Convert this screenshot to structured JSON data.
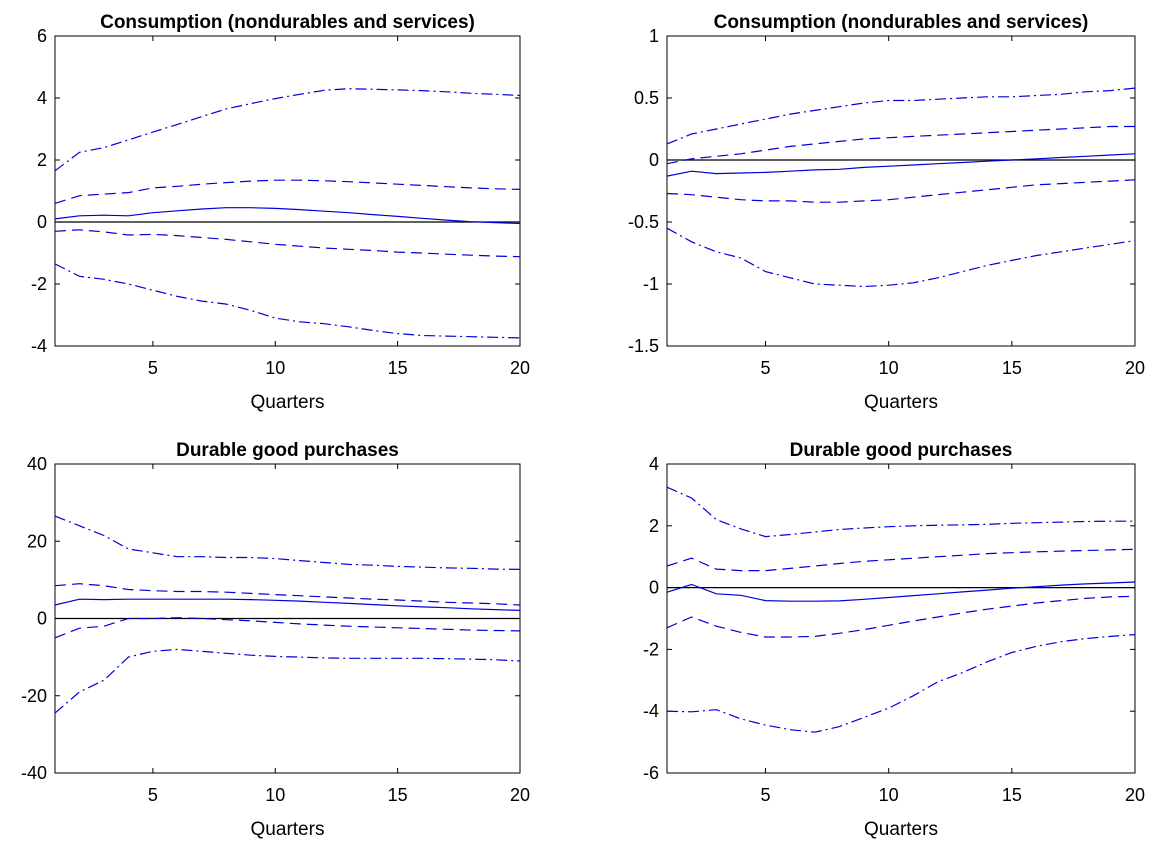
{
  "chart_data": [
    {
      "type": "line",
      "title": "Consumption (nondurables and services)",
      "xlabel": "Quarters",
      "ylabel": "",
      "xlim": [
        1,
        20
      ],
      "ylim": [
        -4,
        6
      ],
      "xticks": [
        5,
        10,
        15,
        20
      ],
      "yticks": [
        -4,
        -2,
        0,
        2,
        4,
        6
      ],
      "ytick_labels": [
        "-4",
        "-2",
        "0",
        "2",
        "4",
        "6"
      ],
      "zero_line": true,
      "x": [
        1,
        2,
        3,
        4,
        5,
        6,
        7,
        8,
        9,
        10,
        11,
        12,
        13,
        14,
        15,
        16,
        17,
        18,
        19,
        20
      ],
      "series": [
        {
          "style": "dashdot",
          "values": [
            1.65,
            2.25,
            2.4,
            2.65,
            2.9,
            3.15,
            3.4,
            3.65,
            3.82,
            3.98,
            4.12,
            4.25,
            4.3,
            4.28,
            4.26,
            4.24,
            4.2,
            4.15,
            4.12,
            4.08
          ]
        },
        {
          "style": "dashed",
          "values": [
            0.6,
            0.85,
            0.9,
            0.95,
            1.1,
            1.15,
            1.22,
            1.27,
            1.32,
            1.35,
            1.35,
            1.33,
            1.3,
            1.26,
            1.22,
            1.18,
            1.14,
            1.1,
            1.07,
            1.05
          ]
        },
        {
          "style": "solid",
          "values": [
            0.1,
            0.2,
            0.22,
            0.2,
            0.3,
            0.36,
            0.42,
            0.46,
            0.46,
            0.44,
            0.4,
            0.35,
            0.3,
            0.24,
            0.18,
            0.12,
            0.06,
            0.01,
            -0.02,
            -0.05
          ]
        },
        {
          "style": "dashed",
          "values": [
            -0.3,
            -0.25,
            -0.32,
            -0.42,
            -0.4,
            -0.44,
            -0.5,
            -0.56,
            -0.64,
            -0.72,
            -0.78,
            -0.84,
            -0.88,
            -0.92,
            -0.97,
            -1.0,
            -1.04,
            -1.07,
            -1.1,
            -1.12
          ]
        },
        {
          "style": "dashdot",
          "values": [
            -1.35,
            -1.75,
            -1.85,
            -2.0,
            -2.2,
            -2.4,
            -2.55,
            -2.65,
            -2.85,
            -3.1,
            -3.22,
            -3.28,
            -3.38,
            -3.5,
            -3.6,
            -3.66,
            -3.68,
            -3.7,
            -3.72,
            -3.74
          ]
        }
      ]
    },
    {
      "type": "line",
      "title": "Consumption (nondurables and services)",
      "xlabel": "Quarters",
      "ylabel": "",
      "xlim": [
        1,
        20
      ],
      "ylim": [
        -1.5,
        1
      ],
      "xticks": [
        5,
        10,
        15,
        20
      ],
      "yticks": [
        -1.5,
        -1,
        -0.5,
        0,
        0.5,
        1
      ],
      "ytick_labels": [
        "-1.5",
        "-1",
        "-0.5",
        "0",
        "0.5",
        "1"
      ],
      "zero_line": true,
      "x": [
        1,
        2,
        3,
        4,
        5,
        6,
        7,
        8,
        9,
        10,
        11,
        12,
        13,
        14,
        15,
        16,
        17,
        18,
        19,
        20
      ],
      "series": [
        {
          "style": "dashdot",
          "values": [
            0.13,
            0.21,
            0.25,
            0.29,
            0.33,
            0.37,
            0.4,
            0.43,
            0.46,
            0.48,
            0.48,
            0.49,
            0.5,
            0.51,
            0.51,
            0.52,
            0.53,
            0.55,
            0.56,
            0.58
          ]
        },
        {
          "style": "dashed",
          "values": [
            -0.03,
            0.01,
            0.03,
            0.05,
            0.08,
            0.11,
            0.13,
            0.15,
            0.17,
            0.18,
            0.19,
            0.2,
            0.21,
            0.22,
            0.23,
            0.24,
            0.25,
            0.26,
            0.27,
            0.27
          ]
        },
        {
          "style": "solid",
          "values": [
            -0.13,
            -0.09,
            -0.11,
            -0.105,
            -0.1,
            -0.09,
            -0.08,
            -0.075,
            -0.06,
            -0.05,
            -0.04,
            -0.03,
            -0.02,
            -0.01,
            0.0,
            0.01,
            0.02,
            0.03,
            0.04,
            0.05
          ]
        },
        {
          "style": "dashed",
          "values": [
            -0.27,
            -0.28,
            -0.3,
            -0.32,
            -0.33,
            -0.33,
            -0.34,
            -0.34,
            -0.33,
            -0.32,
            -0.3,
            -0.28,
            -0.26,
            -0.24,
            -0.22,
            -0.2,
            -0.19,
            -0.18,
            -0.17,
            -0.16
          ]
        },
        {
          "style": "dashdot",
          "values": [
            -0.55,
            -0.66,
            -0.74,
            -0.79,
            -0.9,
            -0.95,
            -1.0,
            -1.01,
            -1.02,
            -1.01,
            -0.99,
            -0.95,
            -0.9,
            -0.85,
            -0.81,
            -0.77,
            -0.74,
            -0.71,
            -0.68,
            -0.65
          ]
        }
      ]
    },
    {
      "type": "line",
      "title": "Durable good purchases",
      "xlabel": "Quarters",
      "ylabel": "",
      "xlim": [
        1,
        20
      ],
      "ylim": [
        -40,
        40
      ],
      "xticks": [
        5,
        10,
        15,
        20
      ],
      "yticks": [
        -40,
        -20,
        0,
        20,
        40
      ],
      "ytick_labels": [
        "-40",
        "-20",
        "0",
        "20",
        "40"
      ],
      "zero_line": true,
      "x": [
        1,
        2,
        3,
        4,
        5,
        6,
        7,
        8,
        9,
        10,
        11,
        12,
        13,
        14,
        15,
        16,
        17,
        18,
        19,
        20
      ],
      "series": [
        {
          "style": "dashdot",
          "values": [
            26.5,
            24,
            21.5,
            18,
            17,
            16,
            16,
            15.8,
            15.8,
            15.5,
            15,
            14.5,
            14,
            13.8,
            13.5,
            13.3,
            13.1,
            13,
            12.8,
            12.7
          ]
        },
        {
          "style": "dashed",
          "values": [
            8.5,
            9,
            8.5,
            7.5,
            7.2,
            7.0,
            7.0,
            6.8,
            6.5,
            6.2,
            5.9,
            5.6,
            5.3,
            5.0,
            4.8,
            4.5,
            4.2,
            4.0,
            3.8,
            3.5
          ]
        },
        {
          "style": "solid",
          "values": [
            3.5,
            5.0,
            4.9,
            5.0,
            5.0,
            5.0,
            5.0,
            5.0,
            4.9,
            4.7,
            4.5,
            4.2,
            3.9,
            3.6,
            3.3,
            3.0,
            2.8,
            2.5,
            2.3,
            2.1
          ]
        },
        {
          "style": "dashed",
          "values": [
            -5,
            -2.5,
            -2,
            0,
            0,
            0.2,
            0,
            -0.3,
            -0.6,
            -1,
            -1.4,
            -1.7,
            -2,
            -2.2,
            -2.4,
            -2.6,
            -2.8,
            -3,
            -3.1,
            -3.2
          ]
        },
        {
          "style": "dashdot",
          "values": [
            -24.5,
            -19,
            -16,
            -10,
            -8.5,
            -8,
            -8.5,
            -9,
            -9.5,
            -9.8,
            -10,
            -10.2,
            -10.3,
            -10.3,
            -10.3,
            -10.3,
            -10.4,
            -10.5,
            -10.7,
            -11
          ]
        }
      ]
    },
    {
      "type": "line",
      "title": "Durable good purchases",
      "xlabel": "Quarters",
      "ylabel": "",
      "xlim": [
        1,
        20
      ],
      "ylim": [
        -6,
        4
      ],
      "xticks": [
        5,
        10,
        15,
        20
      ],
      "yticks": [
        -6,
        -4,
        -2,
        0,
        2,
        4
      ],
      "ytick_labels": [
        "-6",
        "-4",
        "-2",
        "0",
        "2",
        "4"
      ],
      "zero_line": true,
      "x": [
        1,
        2,
        3,
        4,
        5,
        6,
        7,
        8,
        9,
        10,
        11,
        12,
        13,
        14,
        15,
        16,
        17,
        18,
        19,
        20
      ],
      "series": [
        {
          "style": "dashdot",
          "values": [
            3.25,
            2.9,
            2.2,
            1.9,
            1.65,
            1.72,
            1.8,
            1.88,
            1.93,
            1.97,
            2.0,
            2.02,
            2.03,
            2.05,
            2.08,
            2.1,
            2.12,
            2.14,
            2.15,
            2.15
          ]
        },
        {
          "style": "dashed",
          "values": [
            0.7,
            0.95,
            0.6,
            0.55,
            0.55,
            0.62,
            0.7,
            0.78,
            0.85,
            0.9,
            0.95,
            1.0,
            1.05,
            1.1,
            1.13,
            1.16,
            1.18,
            1.2,
            1.22,
            1.24
          ]
        },
        {
          "style": "solid",
          "values": [
            -0.15,
            0.1,
            -0.2,
            -0.25,
            -0.42,
            -0.44,
            -0.44,
            -0.43,
            -0.38,
            -0.32,
            -0.26,
            -0.2,
            -0.14,
            -0.08,
            -0.02,
            0.03,
            0.08,
            0.12,
            0.15,
            0.18
          ]
        },
        {
          "style": "dashed",
          "values": [
            -1.3,
            -0.95,
            -1.25,
            -1.45,
            -1.6,
            -1.6,
            -1.58,
            -1.48,
            -1.36,
            -1.22,
            -1.08,
            -0.95,
            -0.82,
            -0.7,
            -0.6,
            -0.5,
            -0.42,
            -0.35,
            -0.3,
            -0.28
          ]
        },
        {
          "style": "dashdot",
          "values": [
            -4,
            -4.02,
            -3.95,
            -4.25,
            -4.45,
            -4.6,
            -4.68,
            -4.5,
            -4.2,
            -3.9,
            -3.5,
            -3.05,
            -2.75,
            -2.4,
            -2.1,
            -1.9,
            -1.75,
            -1.65,
            -1.58,
            -1.52
          ]
        }
      ]
    }
  ]
}
